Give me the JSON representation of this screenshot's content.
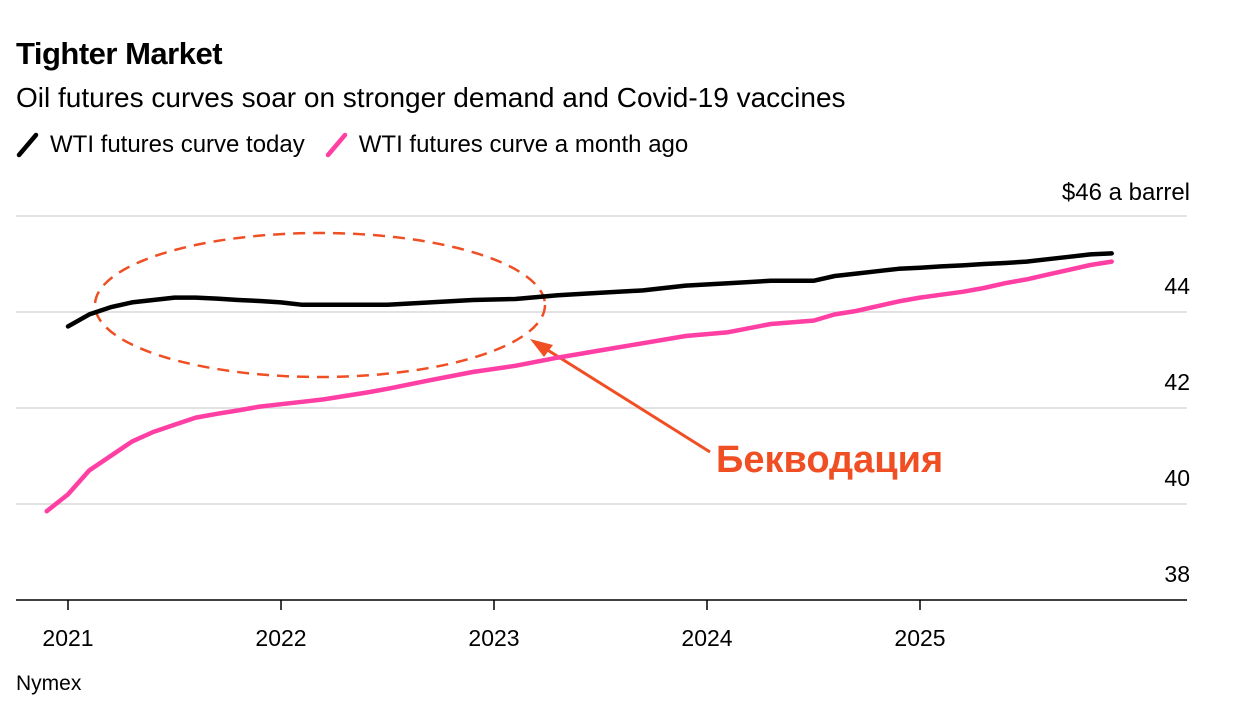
{
  "header": {
    "title": "Tighter Market",
    "subtitle": "Oil futures curves soar on stronger demand and Covid-19 vaccines"
  },
  "source": "Nymex",
  "colors": {
    "today": "#000000",
    "month_ago": "#ff3fa4",
    "annotation": "#f04e23",
    "grid": "#d9d9d9",
    "axis": "#000000"
  },
  "chart_data": {
    "type": "line",
    "title": "Tighter Market",
    "subtitle": "Oil futures curves soar on stronger demand and Covid-19 vaccines",
    "y_unit_label": "$46 a barrel",
    "ylim": [
      38,
      46
    ],
    "yticks": [
      38,
      40,
      42,
      44
    ],
    "xlim": [
      "2020-12",
      "2026-01"
    ],
    "xticks": [
      "2021",
      "2022",
      "2023",
      "2024",
      "2025"
    ],
    "grid": true,
    "legend_position": "top-left",
    "annotation": {
      "text": "Бекводация",
      "target": "2021–2023 section of the WTI futures curve today"
    },
    "series": [
      {
        "name": "WTI futures curve today",
        "color": "#000000",
        "x": [
          2021.0,
          2021.1,
          2021.2,
          2021.3,
          2021.4,
          2021.5,
          2021.6,
          2021.7,
          2021.8,
          2021.9,
          2022.0,
          2022.1,
          2022.2,
          2022.3,
          2022.5,
          2022.7,
          2022.9,
          2023.1,
          2023.3,
          2023.5,
          2023.7,
          2023.9,
          2024.1,
          2024.3,
          2024.5,
          2024.6,
          2024.7,
          2024.8,
          2024.9,
          2025.0,
          2025.1,
          2025.2,
          2025.3,
          2025.4,
          2025.5,
          2025.6,
          2025.7,
          2025.8,
          2025.9
        ],
        "y": [
          43.7,
          43.95,
          44.1,
          44.2,
          44.25,
          44.3,
          44.3,
          44.28,
          44.25,
          44.23,
          44.2,
          44.15,
          44.15,
          44.15,
          44.15,
          44.2,
          44.25,
          44.27,
          44.35,
          44.4,
          44.45,
          44.55,
          44.6,
          44.65,
          44.65,
          44.75,
          44.8,
          44.85,
          44.9,
          44.92,
          44.95,
          44.97,
          45.0,
          45.02,
          45.05,
          45.1,
          45.15,
          45.2,
          45.22
        ]
      },
      {
        "name": "WTI futures curve a month ago",
        "color": "#ff3fa4",
        "x": [
          2020.9,
          2021.0,
          2021.1,
          2021.2,
          2021.3,
          2021.4,
          2021.5,
          2021.6,
          2021.7,
          2021.8,
          2021.9,
          2022.0,
          2022.1,
          2022.2,
          2022.3,
          2022.4,
          2022.5,
          2022.7,
          2022.9,
          2023.1,
          2023.3,
          2023.5,
          2023.7,
          2023.9,
          2024.1,
          2024.3,
          2024.5,
          2024.6,
          2024.7,
          2024.8,
          2024.9,
          2025.0,
          2025.1,
          2025.2,
          2025.3,
          2025.4,
          2025.5,
          2025.6,
          2025.7,
          2025.8,
          2025.9
        ],
        "y": [
          39.85,
          40.2,
          40.7,
          41.0,
          41.3,
          41.5,
          41.65,
          41.8,
          41.88,
          41.95,
          42.03,
          42.08,
          42.13,
          42.18,
          42.25,
          42.32,
          42.4,
          42.58,
          42.75,
          42.88,
          43.05,
          43.2,
          43.35,
          43.5,
          43.58,
          43.75,
          43.82,
          43.95,
          44.02,
          44.12,
          44.22,
          44.3,
          44.36,
          44.42,
          44.5,
          44.6,
          44.68,
          44.78,
          44.88,
          44.98,
          45.05
        ]
      }
    ]
  }
}
